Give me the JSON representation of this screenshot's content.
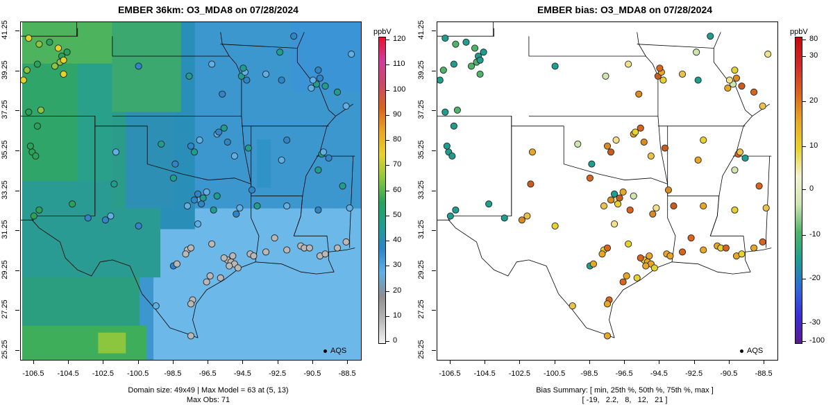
{
  "left": {
    "title": "EMBER 36km: O3_MDA8 on 07/28/2024",
    "footer_line1": "Domain size: 49x49 | Max Model = 63 at (5, 13)",
    "footer_line2": "Max Obs: 71",
    "colorbar": {
      "unit": "ppbV",
      "ticks": [
        "0",
        "10",
        "20",
        "30",
        "40",
        "50",
        "60",
        "70",
        "80",
        "90",
        "100",
        "110",
        "120"
      ],
      "tick_values": [
        0,
        10,
        20,
        30,
        40,
        50,
        60,
        70,
        80,
        90,
        100,
        110,
        120
      ],
      "range": [
        0,
        120
      ],
      "colors": [
        "#f2f2f2",
        "#b8b8b8",
        "#8f8f8f",
        "#5fb0e6",
        "#2e86c8",
        "#1f9e8f",
        "#28a35a",
        "#8cc63f",
        "#e6d22e",
        "#e8a626",
        "#d9641e",
        "#c94a68",
        "#d23c9a",
        "#e8122e"
      ]
    },
    "legend_label": "AQS",
    "obs_range": [
      20,
      71
    ],
    "model_max": 63
  },
  "right": {
    "title": "EMBER bias: O3_MDA8 on 07/28/2024",
    "footer_line1": "Bias Summary: [ min, 25th %, 50th %, 75th %, max ]",
    "footer_line2": "[ -19,   2.2,   8,   12,   21 ]",
    "colorbar": {
      "unit": "ppbV",
      "ticks": [
        "-100",
        "-30",
        "-20",
        "-10",
        "0",
        "10",
        "20",
        "30",
        "80"
      ],
      "tick_values": [
        -100,
        -30,
        -20,
        -10,
        0,
        10,
        20,
        30,
        80
      ],
      "colors": [
        "#5b1a8c",
        "#3b2fd6",
        "#2f6ad8",
        "#1f9e8f",
        "#4fb36a",
        "#cfe6b0",
        "#f2f2d0",
        "#e8d22e",
        "#e8a626",
        "#d9641e",
        "#cf2a2a",
        "#c40a0a"
      ]
    },
    "legend_label": "AQS",
    "bias_summary": {
      "min": -19,
      "p25": 2.2,
      "p50": 8,
      "p75": 12,
      "max": 21
    }
  },
  "axes": {
    "x_ticks": [
      "-106.5",
      "-104.5",
      "-102.5",
      "-100.5",
      "-98.5",
      "-96.5",
      "-94.5",
      "-92.5",
      "-90.5",
      "-88.5"
    ],
    "x_values": [
      -106.5,
      -104.5,
      -102.5,
      -100.5,
      -98.5,
      -96.5,
      -94.5,
      -92.5,
      -90.5,
      -88.5
    ],
    "y_ticks": [
      "25.25",
      "27.25",
      "29.25",
      "31.25",
      "33.25",
      "35.25",
      "37.25",
      "39.25",
      "41.25"
    ],
    "y_values": [
      25.25,
      27.25,
      29.25,
      31.25,
      33.25,
      35.25,
      37.25,
      39.25,
      41.25
    ],
    "lon_range": [
      -107.25,
      -87.75
    ],
    "lat_range": [
      24.8,
      41.7
    ]
  }
}
